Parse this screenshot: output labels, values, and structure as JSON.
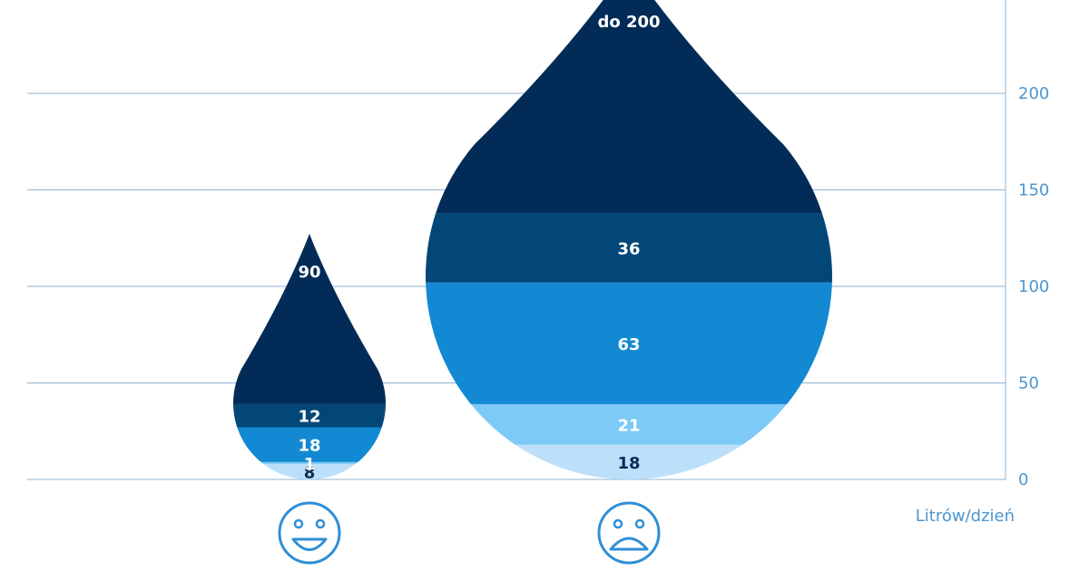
{
  "chart_data": {
    "type": "stacked-drop",
    "unit_label": "Litrów/dzień",
    "y_ticks": [
      0,
      50,
      100,
      150,
      200
    ],
    "ylim": [
      0,
      250
    ],
    "grid": true,
    "drops": [
      {
        "id": "low",
        "face_icon": "smiley-happy-icon",
        "segments": [
          {
            "value": 8,
            "label": "8",
            "color": "#bde0fa",
            "label_color": "#0a2d57"
          },
          {
            "value": 1,
            "label": "1",
            "color": "#7ecaf6",
            "label_color": "#ffffff"
          },
          {
            "value": 18,
            "label": "18",
            "color": "#1389d3",
            "label_color": "#ffffff"
          },
          {
            "value": 12,
            "label": "12",
            "color": "#034778",
            "label_color": "#ffffff"
          },
          {
            "value": 90,
            "label": "90",
            "color": "#022c57",
            "label_color": "#ffffff"
          }
        ]
      },
      {
        "id": "high",
        "face_icon": "smiley-sad-icon",
        "segments": [
          {
            "value": 18,
            "label": "18",
            "color": "#bde0fa",
            "label_color": "#0a2d57"
          },
          {
            "value": 21,
            "label": "21",
            "color": "#7ecaf6",
            "label_color": "#ffffff"
          },
          {
            "value": 63,
            "label": "63",
            "color": "#1389d3",
            "label_color": "#ffffff"
          },
          {
            "value": 36,
            "label": "36",
            "color": "#034778",
            "label_color": "#ffffff"
          },
          {
            "value": 200,
            "label": "do 200",
            "color": "#022c57",
            "label_color": "#ffffff"
          }
        ]
      }
    ],
    "colors": {
      "grid": "#8fb3d4",
      "axis_text": "#4d96cf",
      "icon": "#2f8fd6"
    }
  }
}
